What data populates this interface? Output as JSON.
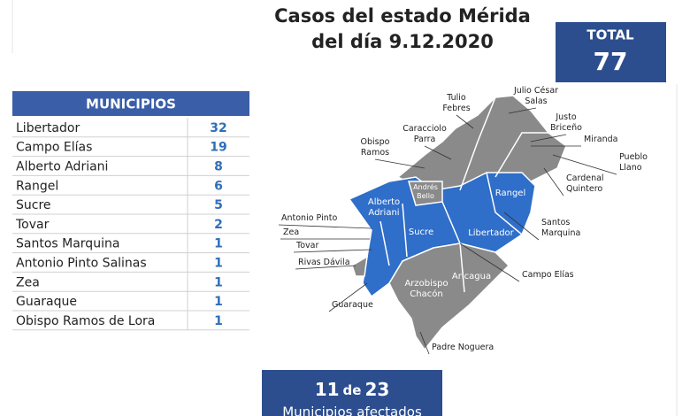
{
  "header": {
    "title_lines": [
      "Casos del estado Mérida",
      "del día 9.12.2020"
    ]
  },
  "total": {
    "label": "TOTAL",
    "value": 77
  },
  "table": {
    "header": "MUNICIPIOS",
    "rows": [
      [
        "Libertador",
        32
      ],
      [
        "Campo Elías",
        19
      ],
      [
        "Alberto Adriani",
        8
      ],
      [
        "Rangel",
        6
      ],
      [
        "Sucre",
        5
      ],
      [
        "Tovar",
        2
      ],
      [
        "Santos Marquina",
        1
      ],
      [
        "Antonio Pinto Salinas",
        1
      ],
      [
        "Zea",
        1
      ],
      [
        "Guaraque",
        1
      ],
      [
        "Obispo Ramos de Lora",
        1
      ]
    ]
  },
  "map": {
    "outer_labels": [
      [
        "Tulio",
        "Febres"
      ],
      [
        "Julio César",
        "Salas"
      ],
      [
        "Caracciolo",
        "Parra"
      ],
      [
        "Justo",
        "Briceño"
      ],
      [
        "Obispo",
        "Ramos"
      ],
      [
        "Miranda"
      ],
      [
        "Pueblo",
        "Llano"
      ],
      [
        "Cardenal",
        "Quintero"
      ],
      [
        "Antonio Pinto"
      ],
      [
        "Zea"
      ],
      [
        "Tovar"
      ],
      [
        "Santos",
        "Marquina"
      ],
      [
        "Rivas Dávila"
      ],
      [
        "Campo Elías"
      ],
      [
        "Guaraque"
      ],
      [
        "Padre Noguera"
      ]
    ],
    "inner_labels": [
      [
        "Andrés",
        "Bello"
      ],
      [
        "Alberto",
        "Adriani"
      ],
      [
        "Sucre"
      ],
      [
        "Libertador"
      ],
      [
        "Rangel"
      ],
      [
        "Arzobispo",
        "Chacón"
      ],
      [
        "Aricagua"
      ]
    ]
  },
  "footer": {
    "affected": 11,
    "of": "de",
    "total": 23,
    "caption": "Municipios afectados"
  }
}
